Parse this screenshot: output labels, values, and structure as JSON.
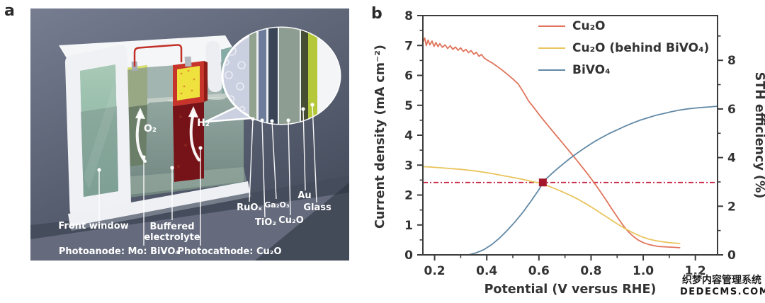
{
  "panels": {
    "a": {
      "label": "a",
      "labels": {
        "front_window": "Front window",
        "buffered_electrolyte_line1": "Buffered",
        "buffered_electrolyte_line2": "electrolyte",
        "photoanode": "Photoanode: Mo: BiVO₄",
        "photocathode": "Photocathode: Cu₂O",
        "o2": "O₂",
        "h2": "H₂"
      },
      "layers": [
        {
          "label": "RuOₓ",
          "color": "#91a28e"
        },
        {
          "label": "TiO₂",
          "color": "#6e7c9b"
        },
        {
          "label": "Ga₂O₃",
          "color": "#3a4457"
        },
        {
          "label": "Cu₂O",
          "color": "#8e9d92"
        },
        {
          "label": "Au",
          "color": "#454d32"
        },
        {
          "label": "Glass",
          "color": "#b5c83a"
        }
      ]
    },
    "b": {
      "label": "b"
    }
  },
  "chart_data": {
    "type": "line",
    "title": "",
    "xlabel": "Potential (V versus RHE)",
    "ylabel_left": "Current density (mA cm⁻²)",
    "ylabel_right": "STH efficiency (%)",
    "xlim": [
      0.155,
      1.285
    ],
    "ylim_left": [
      0,
      8
    ],
    "ylim_right": [
      0,
      9.84
    ],
    "sth_per_ma": 1.23,
    "x_ticks": [
      0.2,
      0.4,
      0.6,
      0.8,
      1.0,
      1.2
    ],
    "x_minor_ticks": [
      0.3,
      0.5,
      0.7,
      0.9,
      1.1
    ],
    "y_ticks_left": [
      0,
      1,
      2,
      3,
      4,
      5,
      6,
      7,
      8
    ],
    "y_minor_ticks_left": [
      0.5,
      1.5,
      2.5,
      3.5,
      4.5,
      5.5,
      6.5,
      7.5
    ],
    "y_ticks_right": [
      0,
      2,
      4,
      6,
      8
    ],
    "y_minor_ticks_right": [
      1,
      3,
      5,
      7,
      9
    ],
    "grid": false,
    "legend_position": "top-center-inside",
    "axis_color": "#3c3c3c",
    "series": [
      {
        "name": "Cu₂O",
        "color": "#e0745c",
        "x": [
          0.155,
          0.162,
          0.168,
          0.175,
          0.182,
          0.19,
          0.198,
          0.205,
          0.213,
          0.22,
          0.23,
          0.24,
          0.25,
          0.26,
          0.27,
          0.28,
          0.29,
          0.3,
          0.31,
          0.32,
          0.33,
          0.34,
          0.35,
          0.36,
          0.37,
          0.38,
          0.39,
          0.4,
          0.42,
          0.44,
          0.46,
          0.48,
          0.5,
          0.52,
          0.54,
          0.56,
          0.58,
          0.6,
          0.62,
          0.64,
          0.66,
          0.68,
          0.7,
          0.72,
          0.74,
          0.76,
          0.78,
          0.8,
          0.82,
          0.84,
          0.86,
          0.88,
          0.9,
          0.92,
          0.94,
          0.96,
          0.98,
          1.0,
          1.02,
          1.04,
          1.06,
          1.08,
          1.1,
          1.12,
          1.14
        ],
        "y": [
          7.1,
          7.25,
          7.0,
          7.18,
          7.02,
          7.15,
          6.97,
          7.1,
          6.96,
          7.06,
          6.94,
          7.02,
          6.9,
          6.99,
          6.87,
          6.95,
          6.84,
          6.92,
          6.8,
          6.87,
          6.76,
          6.83,
          6.71,
          6.77,
          6.64,
          6.7,
          6.58,
          6.52,
          6.42,
          6.3,
          6.17,
          6.03,
          5.88,
          5.72,
          5.45,
          5.15,
          4.93,
          4.7,
          4.48,
          4.27,
          4.06,
          3.85,
          3.64,
          3.43,
          3.22,
          3.0,
          2.78,
          2.55,
          2.31,
          2.06,
          1.8,
          1.53,
          1.27,
          1.02,
          0.8,
          0.63,
          0.5,
          0.41,
          0.35,
          0.31,
          0.28,
          0.27,
          0.26,
          0.25,
          0.24
        ]
      },
      {
        "name": "Cu₂O (behind BiVO₄)",
        "color": "#e9c45e",
        "x": [
          0.155,
          0.18,
          0.21,
          0.24,
          0.27,
          0.3,
          0.33,
          0.36,
          0.39,
          0.42,
          0.45,
          0.48,
          0.51,
          0.54,
          0.57,
          0.6,
          0.63,
          0.66,
          0.69,
          0.72,
          0.75,
          0.78,
          0.81,
          0.84,
          0.87,
          0.9,
          0.93,
          0.96,
          0.99,
          1.02,
          1.05,
          1.08,
          1.11,
          1.14
        ],
        "y": [
          2.95,
          2.94,
          2.92,
          2.9,
          2.88,
          2.86,
          2.83,
          2.8,
          2.76,
          2.72,
          2.67,
          2.62,
          2.57,
          2.52,
          2.46,
          2.41,
          2.32,
          2.22,
          2.11,
          1.99,
          1.86,
          1.71,
          1.55,
          1.38,
          1.21,
          1.04,
          0.88,
          0.74,
          0.62,
          0.53,
          0.47,
          0.43,
          0.4,
          0.38
        ]
      },
      {
        "name": "BiVO₄",
        "color": "#6289a6",
        "x": [
          0.33,
          0.36,
          0.39,
          0.42,
          0.45,
          0.48,
          0.51,
          0.54,
          0.57,
          0.6,
          0.615,
          0.63,
          0.66,
          0.69,
          0.72,
          0.75,
          0.78,
          0.81,
          0.84,
          0.87,
          0.9,
          0.93,
          0.96,
          0.99,
          1.02,
          1.05,
          1.08,
          1.11,
          1.14,
          1.17,
          1.2,
          1.23,
          1.26,
          1.285
        ],
        "y": [
          0.0,
          0.07,
          0.18,
          0.35,
          0.57,
          0.83,
          1.12,
          1.44,
          1.8,
          2.18,
          2.42,
          2.56,
          2.8,
          3.02,
          3.23,
          3.42,
          3.6,
          3.77,
          3.92,
          4.06,
          4.18,
          4.3,
          4.41,
          4.51,
          4.59,
          4.67,
          4.73,
          4.79,
          4.84,
          4.88,
          4.91,
          4.93,
          4.95,
          4.97
        ]
      }
    ],
    "annotations": {
      "dashed_line_y": 2.42,
      "dashed_color": "#c41f3e",
      "marker": {
        "x": 0.615,
        "y": 2.42,
        "color": "#a3182b"
      }
    }
  },
  "watermark": {
    "line1": "织梦内容管理系统",
    "line2": "DEDECMS.COM"
  }
}
